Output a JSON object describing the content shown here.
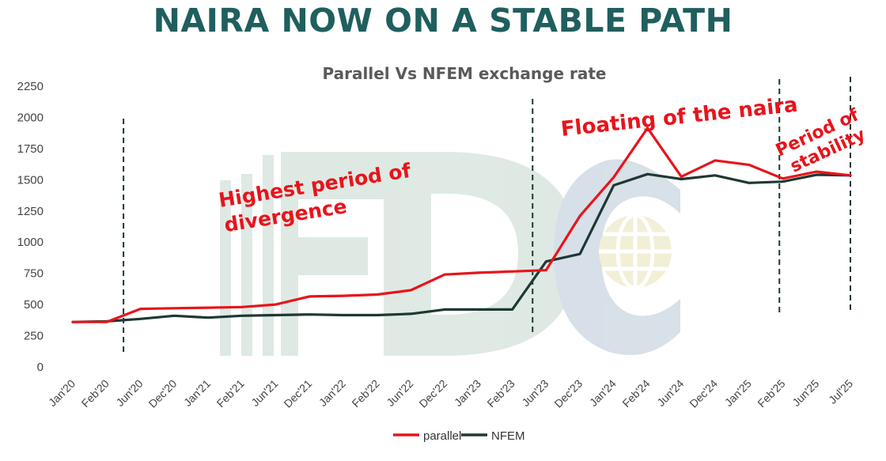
{
  "headline": "NAIRA NOW ON A STABLE PATH",
  "chart_data": {
    "type": "line",
    "title": "Parallel Vs NFEM exchange rate",
    "xlabel": "",
    "ylabel": "",
    "ylim": [
      0,
      2250
    ],
    "yticks": [
      0,
      250,
      500,
      750,
      1000,
      1250,
      1500,
      1750,
      2000,
      2250
    ],
    "grid": false,
    "legend_position": "bottom",
    "categories": [
      "Jan'20",
      "Feb'20",
      "Jun'20",
      "Dec'20",
      "Jan'21",
      "Feb'21",
      "Jun'21",
      "Dec'21",
      "Jan'22",
      "Feb'22",
      "Jun'22",
      "Dec'22",
      "Jan'23",
      "Feb'23",
      "Jun'23",
      "Dec'23",
      "Jan'24",
      "Feb'24",
      "Jun'24",
      "Dec'24",
      "Jan'25",
      "Feb'25",
      "Jun'25",
      "Jul'25"
    ],
    "series": [
      {
        "name": "parallel",
        "color": "#e8141b",
        "values": [
          360,
          360,
          465,
          470,
          475,
          480,
          500,
          565,
          570,
          580,
          615,
          740,
          755,
          765,
          775,
          1210,
          1520,
          1915,
          1525,
          1655,
          1620,
          1510,
          1565,
          1535
        ]
      },
      {
        "name": "NFEM",
        "color": "#1e3833",
        "values": [
          360,
          365,
          385,
          410,
          395,
          410,
          415,
          420,
          415,
          415,
          425,
          460,
          460,
          460,
          845,
          905,
          1455,
          1545,
          1505,
          1535,
          1475,
          1485,
          1540,
          1535
        ]
      }
    ],
    "dividers_after_index": [
      1.5,
      13.6,
      20.9,
      23.0
    ],
    "annotations": [
      {
        "text": "Highest period of",
        "color": "#e8141b"
      },
      {
        "text": "divergence",
        "color": "#e8141b"
      },
      {
        "text": "Floating of the naira",
        "color": "#e8141b"
      },
      {
        "text": "Period of",
        "color": "#e8141b"
      },
      {
        "text": "stability",
        "color": "#e8141b"
      }
    ]
  },
  "watermark": {
    "text": "FDC",
    "color": "#c5d8cd"
  }
}
